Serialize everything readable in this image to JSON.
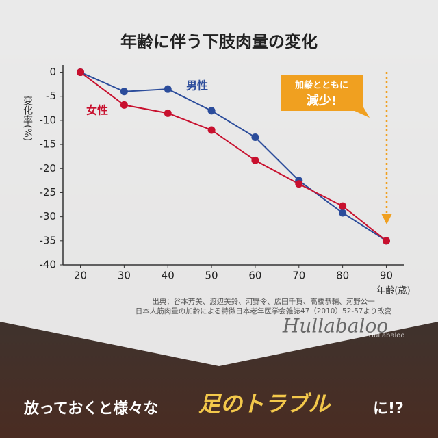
{
  "chart_data": {
    "type": "line",
    "title": "年齢に伴う下肢肉量の変化",
    "ylabel": "変化率(%)",
    "xlabel": "年齢(歳)",
    "x": [
      20,
      30,
      40,
      50,
      60,
      70,
      80,
      90
    ],
    "xlim": [
      16,
      94
    ],
    "xticks": [
      20,
      30,
      40,
      50,
      60,
      70,
      80,
      90
    ],
    "ylim": [
      -40,
      1.5
    ],
    "yticks": [
      0,
      -5,
      -10,
      -15,
      -20,
      -25,
      -30,
      -35,
      -40
    ],
    "series": [
      {
        "name": "男性",
        "color": "#2b4c9b",
        "values": [
          0,
          -4,
          -3.5,
          -8,
          -13.5,
          -22.5,
          -29.2,
          -35
        ]
      },
      {
        "name": "女性",
        "color": "#c8102e",
        "values": [
          0,
          -6.8,
          -8.5,
          -12,
          -18.3,
          -23.2,
          -27.8,
          -35
        ]
      }
    ],
    "annotations": [
      "加齢とともに",
      "減少!"
    ],
    "source": [
      "出典：谷本芳美、渡辺美鈴、河野令、広田千賀、高橋恭輔、河野公一",
      "日本人筋肉量の加齢による特徴日本老年医学会雑誌47（2010）52-57より改変"
    ],
    "watermark": [
      "Hullabaloo",
      "Hullabaloo"
    ],
    "banner": [
      "放っておくと様々な",
      "足のトラブル",
      "に!?"
    ]
  }
}
